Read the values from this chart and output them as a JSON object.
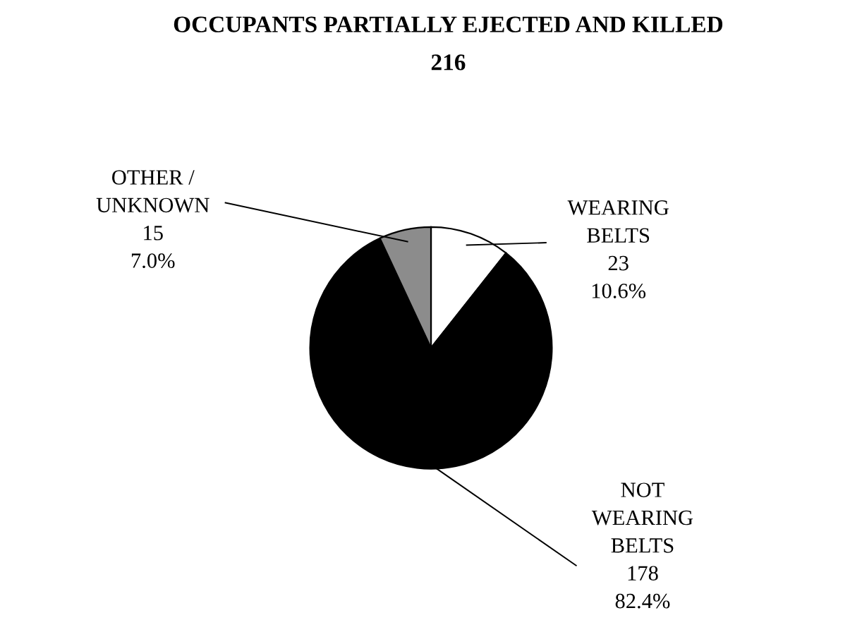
{
  "chart_data": {
    "type": "pie",
    "title": "OCCUPANTS PARTIALLY EJECTED AND KILLED",
    "subtitle": "216",
    "categories": [
      "WEARING\nBELTS",
      "NOT\nWEARING\nBELTS",
      "OTHER /\nUNKNOWN"
    ],
    "values": [
      23,
      178,
      15
    ],
    "colors": [
      "#ffffff",
      "#000000",
      "#8c8c8c"
    ],
    "value_labels": [
      "23\n10.6%",
      "178\n82.4%",
      "15\n7.0%"
    ]
  }
}
